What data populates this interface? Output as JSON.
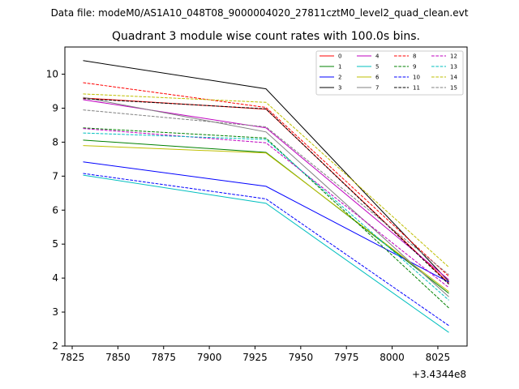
{
  "chart_data": {
    "type": "line",
    "suptitle": "Data file: modeM0/AS1A10_048T08_9000004020_27811cztM0_level2_quad_clean.evt",
    "title": "Quadrant 3 module wise count rates with 100.0s bins.",
    "x": [
      7831,
      7931,
      8031
    ],
    "x_offset_label": "+3.4344e8",
    "xlim": [
      7821,
      8041
    ],
    "ylim": [
      2,
      10.8
    ],
    "xticks": [
      7825,
      7850,
      7875,
      7900,
      7925,
      7950,
      7975,
      8000,
      8025
    ],
    "yticks": [
      2,
      3,
      4,
      5,
      6,
      7,
      8,
      9,
      10
    ],
    "legend_position": "upper-right",
    "series": [
      {
        "name": "0",
        "color": "#ff0000",
        "dash": "solid",
        "values": [
          9.3,
          8.97,
          3.85
        ]
      },
      {
        "name": "1",
        "color": "#008000",
        "dash": "solid",
        "values": [
          8.06,
          7.7,
          3.55
        ]
      },
      {
        "name": "2",
        "color": "#0000ff",
        "dash": "solid",
        "values": [
          7.42,
          6.7,
          3.88
        ]
      },
      {
        "name": "3",
        "color": "#000000",
        "dash": "solid",
        "values": [
          10.4,
          9.57,
          3.9
        ]
      },
      {
        "name": "4",
        "color": "#bf00bf",
        "dash": "solid",
        "values": [
          9.25,
          8.42,
          3.95
        ]
      },
      {
        "name": "5",
        "color": "#00bfbf",
        "dash": "solid",
        "values": [
          7.03,
          6.2,
          2.4
        ]
      },
      {
        "name": "6",
        "color": "#bfbf00",
        "dash": "solid",
        "values": [
          7.9,
          7.68,
          3.6
        ]
      },
      {
        "name": "7",
        "color": "#808080",
        "dash": "solid",
        "values": [
          9.32,
          8.3,
          3.45
        ]
      },
      {
        "name": "8",
        "color": "#ff0000",
        "dash": "dashed",
        "values": [
          9.75,
          9.02,
          4.05
        ]
      },
      {
        "name": "9",
        "color": "#008000",
        "dash": "dashed",
        "values": [
          8.42,
          8.12,
          3.12
        ]
      },
      {
        "name": "10",
        "color": "#0000ff",
        "dash": "dashed",
        "values": [
          7.08,
          6.33,
          2.6
        ]
      },
      {
        "name": "11",
        "color": "#000000",
        "dash": "dashed",
        "values": [
          9.28,
          8.98,
          3.82
        ]
      },
      {
        "name": "12",
        "color": "#bf00bf",
        "dash": "dashed",
        "values": [
          8.4,
          7.98,
          3.72
        ]
      },
      {
        "name": "13",
        "color": "#00bfbf",
        "dash": "dashed",
        "values": [
          8.27,
          8.08,
          3.35
        ]
      },
      {
        "name": "14",
        "color": "#bfbf00",
        "dash": "dashed",
        "values": [
          9.42,
          9.17,
          4.32
        ]
      },
      {
        "name": "15",
        "color": "#808080",
        "dash": "dashed",
        "values": [
          8.95,
          8.45,
          4.1
        ]
      }
    ]
  }
}
